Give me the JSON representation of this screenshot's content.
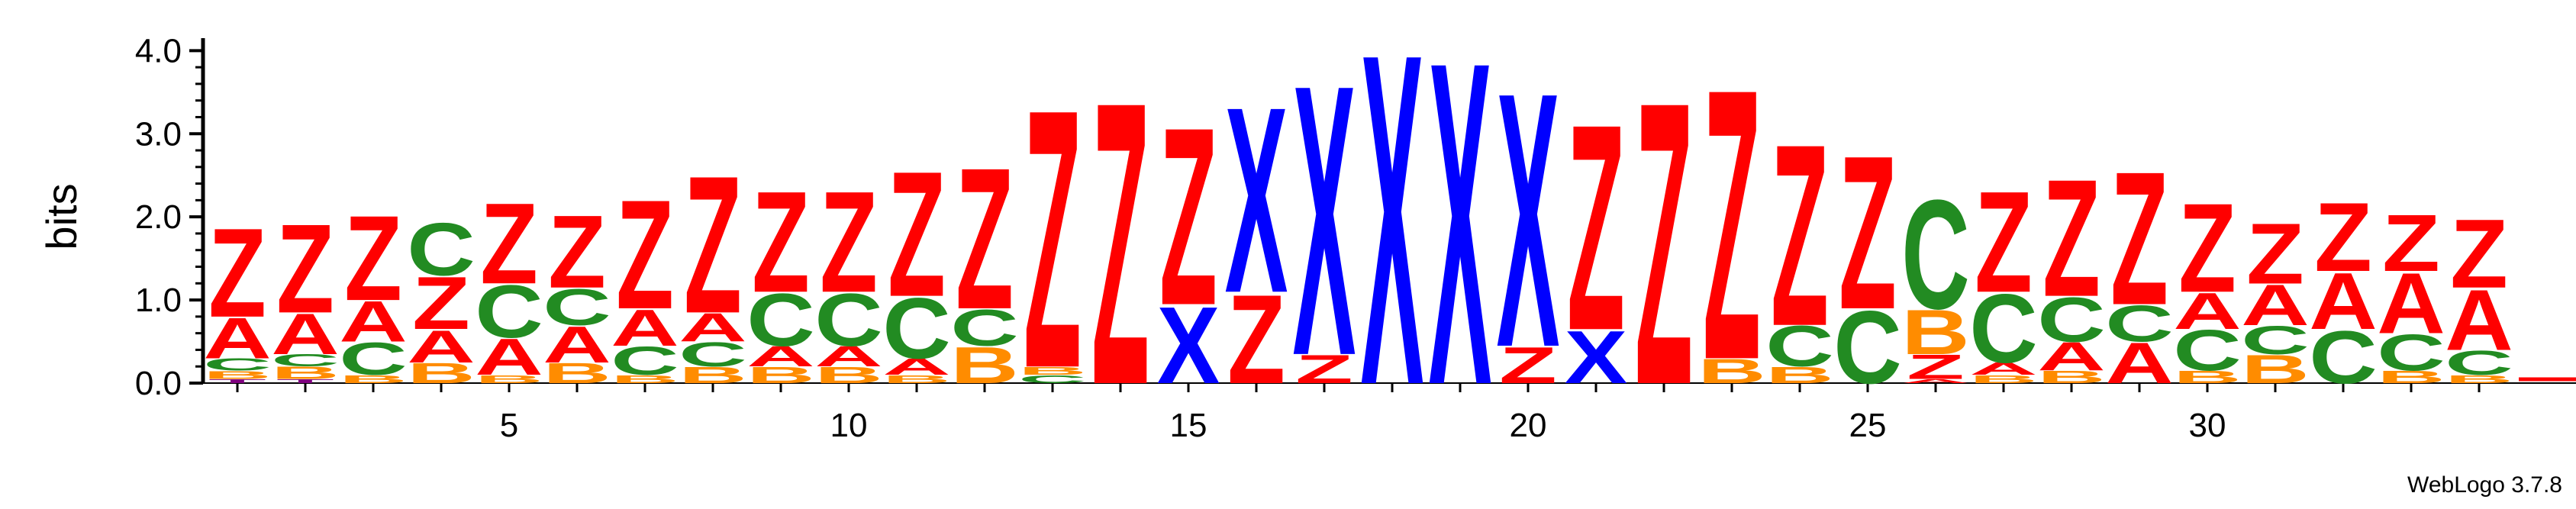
{
  "chart_data": {
    "type": "sequence-logo",
    "ylabel": "bits",
    "ylim": [
      0,
      4.0
    ],
    "yticks": [
      "0.0",
      "1.0",
      "2.0",
      "3.0",
      "4.0"
    ],
    "xticks": [
      5,
      10,
      15,
      20,
      25,
      30
    ],
    "colors": {
      "Z": "#ff0000",
      "A": "#ff0000",
      "C": "#228b22",
      "B": "#ff8c00",
      "X": "#0000ff",
      "T": "#800080"
    },
    "positions": [
      {
        "pos": 1,
        "letters": [
          [
            "T",
            0.05
          ],
          [
            "B",
            0.1
          ],
          [
            "C",
            0.15
          ],
          [
            "A",
            0.5
          ],
          [
            "Z",
            1.1
          ]
        ]
      },
      {
        "pos": 2,
        "letters": [
          [
            "T",
            0.05
          ],
          [
            "B",
            0.15
          ],
          [
            "C",
            0.15
          ],
          [
            "A",
            0.5
          ],
          [
            "Z",
            1.1
          ]
        ]
      },
      {
        "pos": 3,
        "letters": [
          [
            "B",
            0.1
          ],
          [
            "C",
            0.4
          ],
          [
            "A",
            0.5
          ],
          [
            "Z",
            1.05
          ]
        ]
      },
      {
        "pos": 4,
        "letters": [
          [
            "B",
            0.25
          ],
          [
            "A",
            0.4
          ],
          [
            "Z",
            0.65
          ],
          [
            "C",
            0.65
          ]
        ]
      },
      {
        "pos": 5,
        "letters": [
          [
            "B",
            0.1
          ],
          [
            "A",
            0.45
          ],
          [
            "C",
            0.65
          ],
          [
            "Z",
            1.0
          ]
        ]
      },
      {
        "pos": 6,
        "letters": [
          [
            "B",
            0.25
          ],
          [
            "A",
            0.45
          ],
          [
            "C",
            0.45
          ],
          [
            "Z",
            0.9
          ]
        ]
      },
      {
        "pos": 7,
        "letters": [
          [
            "B",
            0.1
          ],
          [
            "C",
            0.35
          ],
          [
            "A",
            0.45
          ],
          [
            "Z",
            1.35
          ]
        ]
      },
      {
        "pos": 8,
        "letters": [
          [
            "B",
            0.2
          ],
          [
            "C",
            0.3
          ],
          [
            "A",
            0.35
          ],
          [
            "Z",
            1.7
          ]
        ]
      },
      {
        "pos": 9,
        "letters": [
          [
            "B",
            0.2
          ],
          [
            "A",
            0.25
          ],
          [
            "C",
            0.65
          ],
          [
            "Z",
            1.25
          ]
        ]
      },
      {
        "pos": 10,
        "letters": [
          [
            "B",
            0.2
          ],
          [
            "A",
            0.25
          ],
          [
            "C",
            0.65
          ],
          [
            "Z",
            1.25
          ]
        ]
      },
      {
        "pos": 11,
        "letters": [
          [
            "B",
            0.1
          ],
          [
            "A",
            0.2
          ],
          [
            "C",
            0.75
          ],
          [
            "Z",
            1.55
          ]
        ]
      },
      {
        "pos": 12,
        "letters": [
          [
            "B",
            0.45
          ],
          [
            "C",
            0.45
          ],
          [
            "Z",
            1.75
          ]
        ]
      },
      {
        "pos": 13,
        "letters": [
          [
            "C",
            0.1
          ],
          [
            "B",
            0.1
          ],
          [
            "Z",
            3.2
          ]
        ]
      },
      {
        "pos": 14,
        "letters": [
          [
            "Z",
            3.5
          ]
        ]
      },
      {
        "pos": 15,
        "letters": [
          [
            "X",
            0.95
          ],
          [
            "Z",
            2.2
          ]
        ]
      },
      {
        "pos": 16,
        "letters": [
          [
            "Z",
            1.1
          ],
          [
            "X",
            2.3
          ]
        ]
      },
      {
        "pos": 17,
        "letters": [
          [
            "Z",
            0.35
          ],
          [
            "X",
            3.35
          ]
        ]
      },
      {
        "pos": 18,
        "letters": [
          [
            "X",
            4.1
          ]
        ]
      },
      {
        "pos": 19,
        "letters": [
          [
            "X",
            4.0
          ]
        ]
      },
      {
        "pos": 20,
        "letters": [
          [
            "Z",
            0.45
          ],
          [
            "X",
            3.15
          ]
        ]
      },
      {
        "pos": 21,
        "letters": [
          [
            "X",
            0.65
          ],
          [
            "Z",
            2.55
          ]
        ]
      },
      {
        "pos": 22,
        "letters": [
          [
            "Z",
            3.5
          ]
        ]
      },
      {
        "pos": 23,
        "letters": [
          [
            "B",
            0.3
          ],
          [
            "Z",
            3.35
          ]
        ]
      },
      {
        "pos": 24,
        "letters": [
          [
            "B",
            0.2
          ],
          [
            "C",
            0.5
          ],
          [
            "Z",
            2.25
          ]
        ]
      },
      {
        "pos": 25,
        "letters": [
          [
            "C",
            0.9
          ],
          [
            "Z",
            1.9
          ]
        ]
      },
      {
        "pos": 26,
        "letters": [
          [
            "A",
            0.05
          ],
          [
            "Z",
            0.3
          ],
          [
            "B",
            0.55
          ],
          [
            "C",
            1.35
          ]
        ]
      },
      {
        "pos": 27,
        "letters": [
          [
            "B",
            0.1
          ],
          [
            "A",
            0.15
          ],
          [
            "C",
            0.85
          ],
          [
            "Z",
            1.25
          ]
        ]
      },
      {
        "pos": 28,
        "letters": [
          [
            "B",
            0.15
          ],
          [
            "A",
            0.35
          ],
          [
            "C",
            0.55
          ],
          [
            "Z",
            1.45
          ]
        ]
      },
      {
        "pos": 29,
        "letters": [
          [
            "A",
            0.5
          ],
          [
            "C",
            0.45
          ],
          [
            "Z",
            1.65
          ]
        ]
      },
      {
        "pos": 30,
        "letters": [
          [
            "B",
            0.15
          ],
          [
            "C",
            0.5
          ],
          [
            "A",
            0.45
          ],
          [
            "Z",
            1.1
          ]
        ]
      },
      {
        "pos": 31,
        "letters": [
          [
            "B",
            0.35
          ],
          [
            "C",
            0.35
          ],
          [
            "A",
            0.5
          ],
          [
            "Z",
            0.75
          ]
        ]
      },
      {
        "pos": 32,
        "letters": [
          [
            "C",
            0.65
          ],
          [
            "A",
            0.7
          ],
          [
            "Z",
            0.85
          ]
        ]
      },
      {
        "pos": 33,
        "letters": [
          [
            "B",
            0.15
          ],
          [
            "C",
            0.45
          ],
          [
            "A",
            0.75
          ],
          [
            "Z",
            0.7
          ]
        ]
      },
      {
        "pos": 34,
        "letters": [
          [
            "B",
            0.1
          ],
          [
            "C",
            0.3
          ],
          [
            "A",
            0.75
          ],
          [
            "Z",
            0.85
          ]
        ]
      }
    ]
  },
  "footer": {
    "credit": "WebLogo 3.7.8"
  }
}
